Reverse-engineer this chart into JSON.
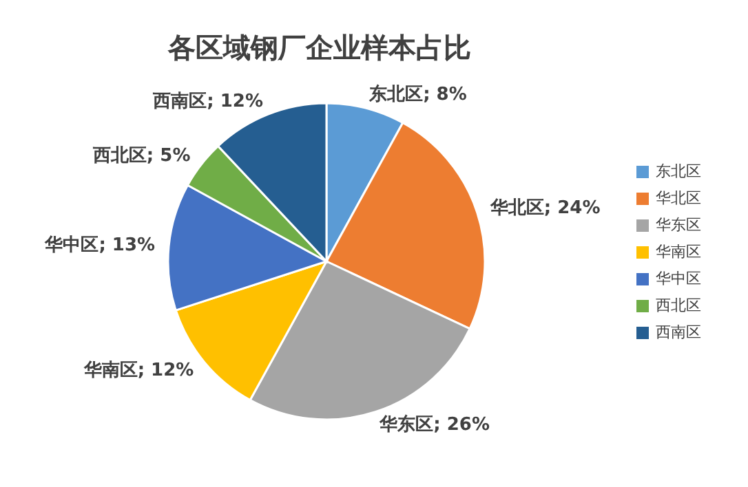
{
  "chart_data": {
    "type": "pie",
    "title": "各区域钢厂企业样本占比",
    "categories": [
      "东北区",
      "华北区",
      "华东区",
      "华南区",
      "华中区",
      "西北区",
      "西南区"
    ],
    "values": [
      8,
      24,
      26,
      12,
      13,
      5,
      12
    ],
    "colors": [
      "#5b9bd5",
      "#ed7d31",
      "#a5a5a5",
      "#ffc000",
      "#4472c4",
      "#70ad47",
      "#255e91"
    ],
    "value_labels": [
      "东北区; 8%",
      "华北区; 24%",
      "华东区; 26%",
      "华南区; 12%",
      "华中区; 13%",
      "西北区; 5%",
      "西南区; 12%"
    ],
    "legend": "right"
  }
}
